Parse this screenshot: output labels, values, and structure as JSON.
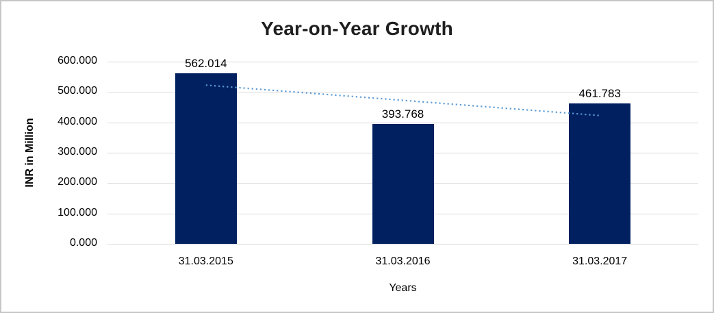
{
  "window": {
    "background": "#ffffff",
    "border_color": "#c6c6c6"
  },
  "chart_data": {
    "type": "bar",
    "title": "Year-on-Year Growth",
    "xlabel": "Years",
    "ylabel": "INR in Million",
    "categories": [
      "31.03.2015",
      "31.03.2016",
      "31.03.2017"
    ],
    "values": [
      562.014,
      393.768,
      461.783
    ],
    "data_labels": [
      "562.014",
      "393.768",
      "461.783"
    ],
    "ylim": [
      0,
      600
    ],
    "ytick_values": [
      600,
      500,
      400,
      300,
      200,
      100,
      0
    ],
    "ytick_labels": [
      "600.000",
      "500.000",
      "400.000",
      "300.000",
      "200.000",
      "100.000",
      "0.000"
    ],
    "grid": "horizontal",
    "legend": "none",
    "bar_color": "#002060",
    "gridline_color": "#d9d9d9",
    "label_color": "#000000",
    "trendline": {
      "type": "linear",
      "style": "dotted",
      "color": "#5b9bd5",
      "endpoint_values": [
        522.6,
        422.4
      ]
    }
  }
}
